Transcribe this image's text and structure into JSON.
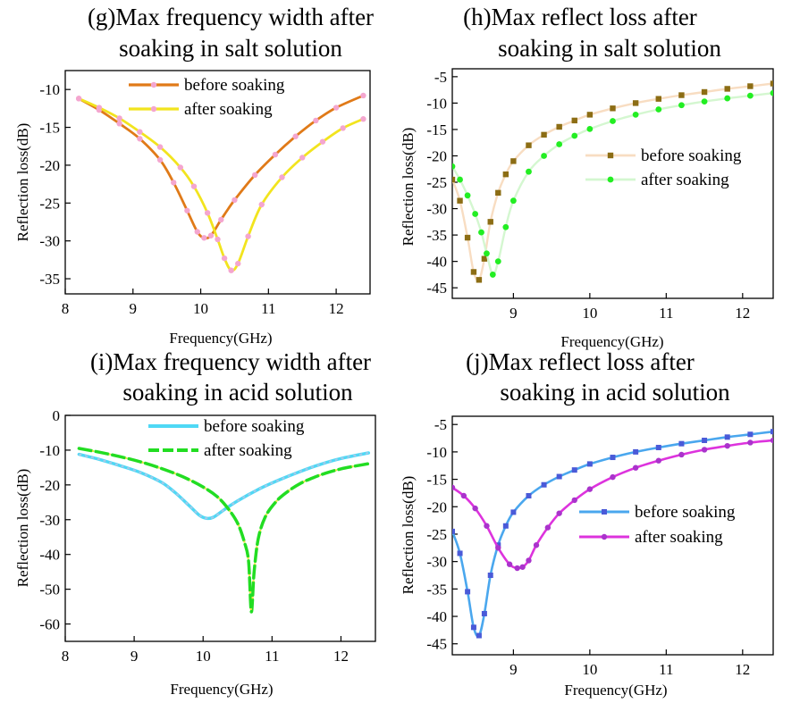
{
  "chart_data": [
    {
      "panel": "g",
      "type": "line",
      "title": [
        "(g)Max frequency width after",
        "soaking in salt solution"
      ],
      "xlabel": "Frequency(GHz)",
      "ylabel": "Reflection loss(dB)",
      "xlim": [
        8,
        12.5
      ],
      "ylim": [
        -37,
        -7.5
      ],
      "xticks": [
        8,
        9,
        10,
        11,
        12
      ],
      "yticks": [
        -10,
        -15,
        -20,
        -25,
        -30,
        -35
      ],
      "legend": [
        "before soaking",
        "after  soaking"
      ],
      "series": [
        {
          "name": "before soaking",
          "color": "#e07a18",
          "marker_color": "#f4a6cf",
          "x": [
            8.2,
            8.5,
            8.8,
            9.1,
            9.4,
            9.6,
            9.8,
            9.95,
            10.05,
            10.15,
            10.3,
            10.5,
            10.8,
            11.1,
            11.4,
            11.7,
            12.0,
            12.4
          ],
          "y": [
            -11.2,
            -12.7,
            -14.5,
            -16.5,
            -19.3,
            -22.3,
            -26.0,
            -28.8,
            -29.6,
            -29.3,
            -27.2,
            -24.6,
            -21.3,
            -18.6,
            -16.2,
            -14.1,
            -12.4,
            -10.8
          ]
        },
        {
          "name": "after  soaking",
          "color": "#f2e41e",
          "marker_color": "#f4a6cf",
          "x": [
            8.2,
            8.5,
            8.8,
            9.1,
            9.4,
            9.7,
            9.9,
            10.1,
            10.25,
            10.35,
            10.45,
            10.55,
            10.7,
            10.9,
            11.2,
            11.5,
            11.8,
            12.1,
            12.4
          ],
          "y": [
            -11.2,
            -12.4,
            -13.8,
            -15.6,
            -17.6,
            -20.3,
            -22.8,
            -26.3,
            -29.8,
            -32.3,
            -33.9,
            -33.0,
            -29.4,
            -25.2,
            -21.6,
            -19.0,
            -16.9,
            -15.1,
            -13.9
          ]
        }
      ]
    },
    {
      "panel": "h",
      "type": "line",
      "title": [
        "(h)Max reflect loss after",
        "soaking in salt solution"
      ],
      "xlabel": "Frequency(GHz)",
      "ylabel": "Reflection loss(dB)",
      "xlim": [
        8.2,
        12.4
      ],
      "ylim": [
        -47,
        -3.5
      ],
      "xticks": [
        9,
        10,
        11,
        12
      ],
      "yticks": [
        -5,
        -10,
        -15,
        -20,
        -25,
        -30,
        -35,
        -40,
        -45
      ],
      "legend": [
        "before soaking",
        "after  soaking"
      ],
      "series": [
        {
          "name": "before soaking",
          "color": "#f8ddc2",
          "marker_color": "#8c6d14",
          "x": [
            8.2,
            8.3,
            8.4,
            8.48,
            8.55,
            8.62,
            8.7,
            8.8,
            8.9,
            9.0,
            9.2,
            9.4,
            9.6,
            9.8,
            10.0,
            10.3,
            10.6,
            10.9,
            11.2,
            11.5,
            11.8,
            12.1,
            12.4
          ],
          "y": [
            -24.5,
            -28.5,
            -35.5,
            -42.0,
            -43.5,
            -39.5,
            -32.5,
            -27.0,
            -23.5,
            -21.0,
            -18.0,
            -16.0,
            -14.5,
            -13.3,
            -12.2,
            -11.0,
            -10.0,
            -9.2,
            -8.5,
            -7.9,
            -7.3,
            -6.8,
            -6.3
          ]
        },
        {
          "name": "after  soaking",
          "color": "#d4f7d0",
          "marker_color": "#22ee22",
          "x": [
            8.2,
            8.3,
            8.4,
            8.5,
            8.58,
            8.65,
            8.73,
            8.8,
            8.9,
            9.0,
            9.2,
            9.4,
            9.6,
            9.8,
            10.0,
            10.3,
            10.6,
            10.9,
            11.2,
            11.5,
            11.8,
            12.1,
            12.4
          ],
          "y": [
            -22.0,
            -24.5,
            -27.5,
            -31.0,
            -34.5,
            -38.5,
            -42.5,
            -40.0,
            -33.5,
            -28.5,
            -23.0,
            -20.0,
            -17.8,
            -16.2,
            -14.9,
            -13.4,
            -12.2,
            -11.2,
            -10.4,
            -9.7,
            -9.1,
            -8.6,
            -8.1
          ]
        }
      ]
    },
    {
      "panel": "i",
      "type": "line",
      "title": [
        "(i)Max frequency width after",
        "soaking in acid solution"
      ],
      "xlabel": "Frequency(GHz)",
      "ylabel": "Reflection loss(dB)",
      "xlim": [
        8,
        12.5
      ],
      "ylim": [
        -65,
        0
      ],
      "xticks": [
        8,
        9,
        10,
        11,
        12
      ],
      "yticks": [
        0,
        -10,
        -20,
        -30,
        -40,
        -50,
        -60
      ],
      "legend": [
        "before soaking",
        "after  soaking"
      ],
      "series": [
        {
          "name": "before soaking",
          "color": "#4fd8f5",
          "marker_color": "#a9c8e8",
          "x": [
            8.2,
            8.5,
            8.8,
            9.1,
            9.4,
            9.6,
            9.8,
            9.95,
            10.05,
            10.15,
            10.3,
            10.5,
            10.8,
            11.1,
            11.4,
            11.7,
            12.0,
            12.4
          ],
          "y": [
            -11.2,
            -12.7,
            -14.5,
            -16.5,
            -19.3,
            -22.3,
            -26.0,
            -28.8,
            -29.6,
            -29.3,
            -27.2,
            -24.6,
            -21.3,
            -18.6,
            -16.2,
            -14.1,
            -12.4,
            -10.8
          ]
        },
        {
          "name": "after  soaking",
          "color": "#22dd22",
          "marker_color": "#e8e640",
          "x": [
            8.2,
            8.5,
            8.8,
            9.1,
            9.4,
            9.7,
            10.0,
            10.2,
            10.35,
            10.5,
            10.6,
            10.66,
            10.7,
            10.74,
            10.8,
            10.9,
            11.05,
            11.2,
            11.4,
            11.6,
            11.8,
            12.0,
            12.2,
            12.4
          ],
          "y": [
            -9.5,
            -10.6,
            -11.9,
            -13.4,
            -15.3,
            -17.6,
            -20.6,
            -23.3,
            -26.5,
            -31.0,
            -36.5,
            -42.0,
            -56.5,
            -45.0,
            -35.5,
            -29.3,
            -25.0,
            -22.3,
            -19.7,
            -17.9,
            -16.5,
            -15.4,
            -14.6,
            -13.9
          ]
        }
      ]
    },
    {
      "panel": "j",
      "type": "line",
      "title": [
        "(j)Max reflect loss after",
        "soaking in acid solution"
      ],
      "xlabel": "Frequency(GHz)",
      "ylabel": "Reflection loss(dB)",
      "xlim": [
        8.2,
        12.4
      ],
      "ylim": [
        -47,
        -3.5
      ],
      "xticks": [
        9,
        10,
        11,
        12
      ],
      "yticks": [
        -5,
        -10,
        -15,
        -20,
        -25,
        -30,
        -35,
        -40,
        -45
      ],
      "legend": [
        "before soaking",
        "after  soaking"
      ],
      "series": [
        {
          "name": "before soaking",
          "color": "#4aa7ee",
          "marker_color": "#4a5ad8",
          "x": [
            8.2,
            8.3,
            8.4,
            8.48,
            8.55,
            8.62,
            8.7,
            8.8,
            8.9,
            9.0,
            9.2,
            9.4,
            9.6,
            9.8,
            10.0,
            10.3,
            10.6,
            10.9,
            11.2,
            11.5,
            11.8,
            12.1,
            12.4
          ],
          "y": [
            -24.5,
            -28.5,
            -35.5,
            -42.0,
            -43.5,
            -39.5,
            -32.5,
            -27.0,
            -23.5,
            -21.0,
            -18.0,
            -16.0,
            -14.5,
            -13.3,
            -12.2,
            -11.0,
            -10.0,
            -9.2,
            -8.5,
            -7.9,
            -7.3,
            -6.8,
            -6.3
          ]
        },
        {
          "name": "after  soaking",
          "color": "#dd33dd",
          "marker_color": "#aa33cc",
          "x": [
            8.2,
            8.35,
            8.5,
            8.65,
            8.8,
            8.95,
            9.05,
            9.12,
            9.2,
            9.3,
            9.45,
            9.6,
            9.8,
            10.0,
            10.3,
            10.6,
            10.9,
            11.2,
            11.5,
            11.8,
            12.1,
            12.4
          ],
          "y": [
            -16.5,
            -18.0,
            -20.3,
            -23.5,
            -27.5,
            -30.5,
            -31.2,
            -31.0,
            -29.8,
            -27.0,
            -23.8,
            -21.2,
            -18.8,
            -16.8,
            -14.6,
            -12.9,
            -11.6,
            -10.5,
            -9.6,
            -8.9,
            -8.3,
            -7.9
          ]
        }
      ]
    }
  ]
}
